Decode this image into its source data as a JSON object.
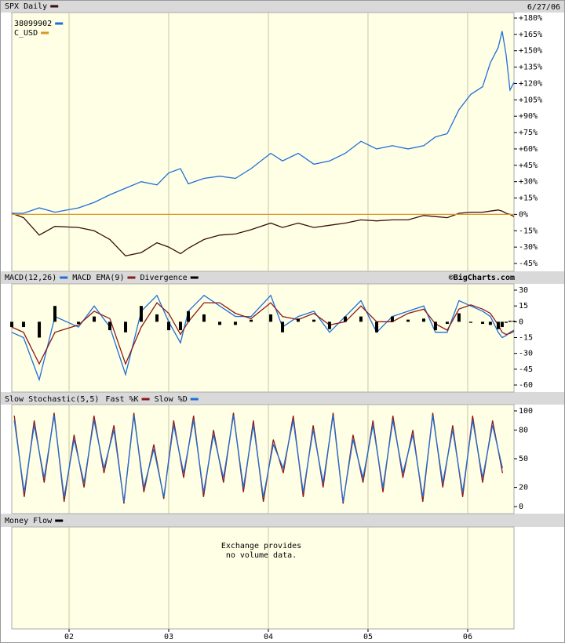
{
  "header": {
    "date": "6/27/06",
    "credit": "©BigCharts.com"
  },
  "chart_data": [
    {
      "type": "line",
      "x": [
        1.425,
        1.543,
        1.701,
        1.858,
        2.094,
        2.252,
        2.409,
        2.567,
        2.724,
        2.882,
        3,
        3.118,
        3.197,
        3.354,
        3.512,
        3.669,
        3.827,
        4.024,
        4.142,
        4.299,
        4.457,
        4.614,
        4.772,
        4.929,
        5.087,
        5.244,
        5.402,
        5.559,
        5.677,
        5.795,
        5.913,
        6.031,
        6.15,
        6.228,
        6.307,
        6.346,
        6.386,
        6.425,
        6.465
      ],
      "series": [
        {
          "name": "SPX Daily",
          "color": "#3a0d0d",
          "values": [
            1,
            -3,
            -19,
            -11,
            -12,
            -15,
            -23,
            -38,
            -35,
            -26,
            -30,
            -36,
            -31,
            -23,
            -19,
            -18,
            -14,
            -8,
            -12,
            -8,
            -12,
            -10,
            -8,
            -5,
            -6,
            -5,
            -5,
            -1,
            -2,
            -3,
            1,
            2,
            2,
            3,
            4,
            3,
            1,
            0,
            -2
          ]
        },
        {
          "name": "38099902",
          "color": "#1f6fd8",
          "values": [
            1,
            1,
            6,
            2,
            6,
            11,
            18,
            24,
            30,
            27,
            38,
            42,
            28,
            33,
            35,
            33,
            42,
            56,
            49,
            56,
            46,
            49,
            56,
            67,
            60,
            63,
            60,
            63,
            71,
            74,
            96,
            110,
            117,
            139,
            153,
            168,
            146,
            114,
            121
          ]
        },
        {
          "name": "C_USD",
          "color": "#d8962a",
          "values": [
            0,
            0,
            0,
            0,
            0,
            0,
            0,
            0,
            0,
            0,
            0,
            0,
            0,
            0,
            0,
            0,
            0,
            0,
            0,
            0,
            0,
            0,
            0,
            0,
            0,
            0,
            0,
            0,
            0,
            0,
            0,
            0,
            0,
            0,
            0,
            0,
            0,
            0,
            0
          ]
        }
      ],
      "ylim": [
        -45,
        180
      ],
      "yticks": [
        {
          "value": 180,
          "label": "+180%"
        },
        {
          "value": 165,
          "label": "+165%"
        },
        {
          "value": 150,
          "label": "+150%"
        },
        {
          "value": 135,
          "label": "+135%"
        },
        {
          "value": 120,
          "label": "+120%"
        },
        {
          "value": 105,
          "label": "+105%"
        },
        {
          "value": 90,
          "label": "+90%"
        },
        {
          "value": 75,
          "label": "+75%"
        },
        {
          "value": 60,
          "label": "+60%"
        },
        {
          "value": 45,
          "label": "+45%"
        },
        {
          "value": 30,
          "label": "+30%"
        },
        {
          "value": 15,
          "label": "+15%"
        },
        {
          "value": 0,
          "label": "0%"
        },
        {
          "value": -15,
          "label": "-15%"
        },
        {
          "value": -30,
          "label": "-30%"
        },
        {
          "value": -45,
          "label": "-45%"
        }
      ],
      "grid": true
    },
    {
      "type": "line",
      "x": [
        1.425,
        1.543,
        1.701,
        1.858,
        2.094,
        2.252,
        2.409,
        2.567,
        2.724,
        2.882,
        3,
        3.118,
        3.197,
        3.354,
        3.512,
        3.669,
        3.827,
        4.024,
        4.142,
        4.299,
        4.457,
        4.614,
        4.772,
        4.929,
        5.087,
        5.244,
        5.402,
        5.559,
        5.677,
        5.795,
        5.913,
        6.031,
        6.15,
        6.228,
        6.307,
        6.346,
        6.386,
        6.425,
        6.465
      ],
      "series": [
        {
          "name": "MACD(12,26)",
          "color": "#1f6fd8",
          "values": [
            -10,
            -15,
            -55,
            5,
            -5,
            15,
            -5,
            -50,
            10,
            25,
            0,
            -20,
            10,
            25,
            15,
            5,
            5,
            25,
            -5,
            5,
            10,
            -10,
            5,
            20,
            -10,
            5,
            10,
            15,
            -10,
            -10,
            20,
            15,
            10,
            5,
            -10,
            -15,
            -13,
            -10,
            -8
          ]
        },
        {
          "name": "MACD EMA(9)",
          "color": "#8b1a1a",
          "values": [
            -5,
            -10,
            -40,
            -10,
            -3,
            10,
            3,
            -40,
            -5,
            18,
            8,
            -12,
            0,
            18,
            18,
            8,
            3,
            18,
            5,
            2,
            8,
            -3,
            0,
            15,
            0,
            0,
            8,
            12,
            -2,
            -8,
            12,
            16,
            12,
            8,
            -3,
            -10,
            -12,
            -11,
            -9
          ]
        },
        {
          "name": "Divergence",
          "color": "#000000",
          "style": "bar",
          "values": [
            -5,
            -5,
            -15,
            15,
            -2,
            5,
            -8,
            -10,
            15,
            7,
            -8,
            -8,
            10,
            7,
            -3,
            -3,
            2,
            7,
            -10,
            3,
            2,
            -7,
            5,
            5,
            -10,
            5,
            2,
            3,
            -8,
            -2,
            8,
            -1,
            -2,
            -3,
            -7,
            -5,
            -1,
            1,
            1
          ]
        }
      ],
      "ylim": [
        -60,
        30
      ],
      "yticks": [
        30,
        15,
        0,
        -15,
        -30,
        -45,
        -60
      ],
      "grid": true
    },
    {
      "type": "line",
      "title": "Slow Stochastic(5,5)",
      "x": [
        1.45,
        1.55,
        1.65,
        1.75,
        1.85,
        1.95,
        2.05,
        2.15,
        2.25,
        2.35,
        2.45,
        2.55,
        2.65,
        2.75,
        2.85,
        2.95,
        3.05,
        3.15,
        3.25,
        3.35,
        3.45,
        3.55,
        3.65,
        3.75,
        3.85,
        3.95,
        4.05,
        4.15,
        4.25,
        4.35,
        4.45,
        4.55,
        4.65,
        4.75,
        4.85,
        4.95,
        5.05,
        5.15,
        5.25,
        5.35,
        5.45,
        5.55,
        5.65,
        5.75,
        5.85,
        5.95,
        6.05,
        6.15,
        6.25,
        6.35
      ],
      "series": [
        {
          "name": "Fast %K",
          "color": "#8b1a1a",
          "values": [
            95,
            10,
            90,
            25,
            98,
            5,
            75,
            20,
            95,
            35,
            85,
            3,
            98,
            15,
            65,
            8,
            90,
            30,
            95,
            10,
            80,
            25,
            98,
            15,
            90,
            5,
            70,
            35,
            95,
            10,
            85,
            20,
            98,
            3,
            75,
            25,
            90,
            15,
            95,
            30,
            80,
            5,
            98,
            20,
            85,
            10,
            95,
            25,
            90,
            35
          ]
        },
        {
          "name": "Slow %D",
          "color": "#1f6fd8",
          "values": [
            90,
            15,
            85,
            30,
            95,
            10,
            70,
            25,
            90,
            40,
            80,
            5,
            95,
            20,
            60,
            10,
            85,
            35,
            90,
            15,
            75,
            30,
            95,
            20,
            85,
            10,
            65,
            40,
            90,
            15,
            80,
            25,
            95,
            5,
            70,
            30,
            85,
            20,
            90,
            35,
            75,
            10,
            95,
            25,
            80,
            15,
            90,
            30,
            85,
            40
          ]
        }
      ],
      "ylim": [
        0,
        100
      ],
      "yticks": [
        100,
        80,
        50,
        20,
        0
      ],
      "grid": true
    },
    {
      "type": "note",
      "title": "Money Flow",
      "color": "#000000",
      "text": [
        "Exchange provides",
        "no volume data."
      ],
      "xlim": [
        1.425,
        6.465
      ],
      "xticks": [
        {
          "value": 2,
          "label": "02"
        },
        {
          "value": 3,
          "label": "03"
        },
        {
          "value": 4,
          "label": "04"
        },
        {
          "value": 5,
          "label": "05"
        },
        {
          "value": 6,
          "label": "06"
        }
      ]
    }
  ]
}
